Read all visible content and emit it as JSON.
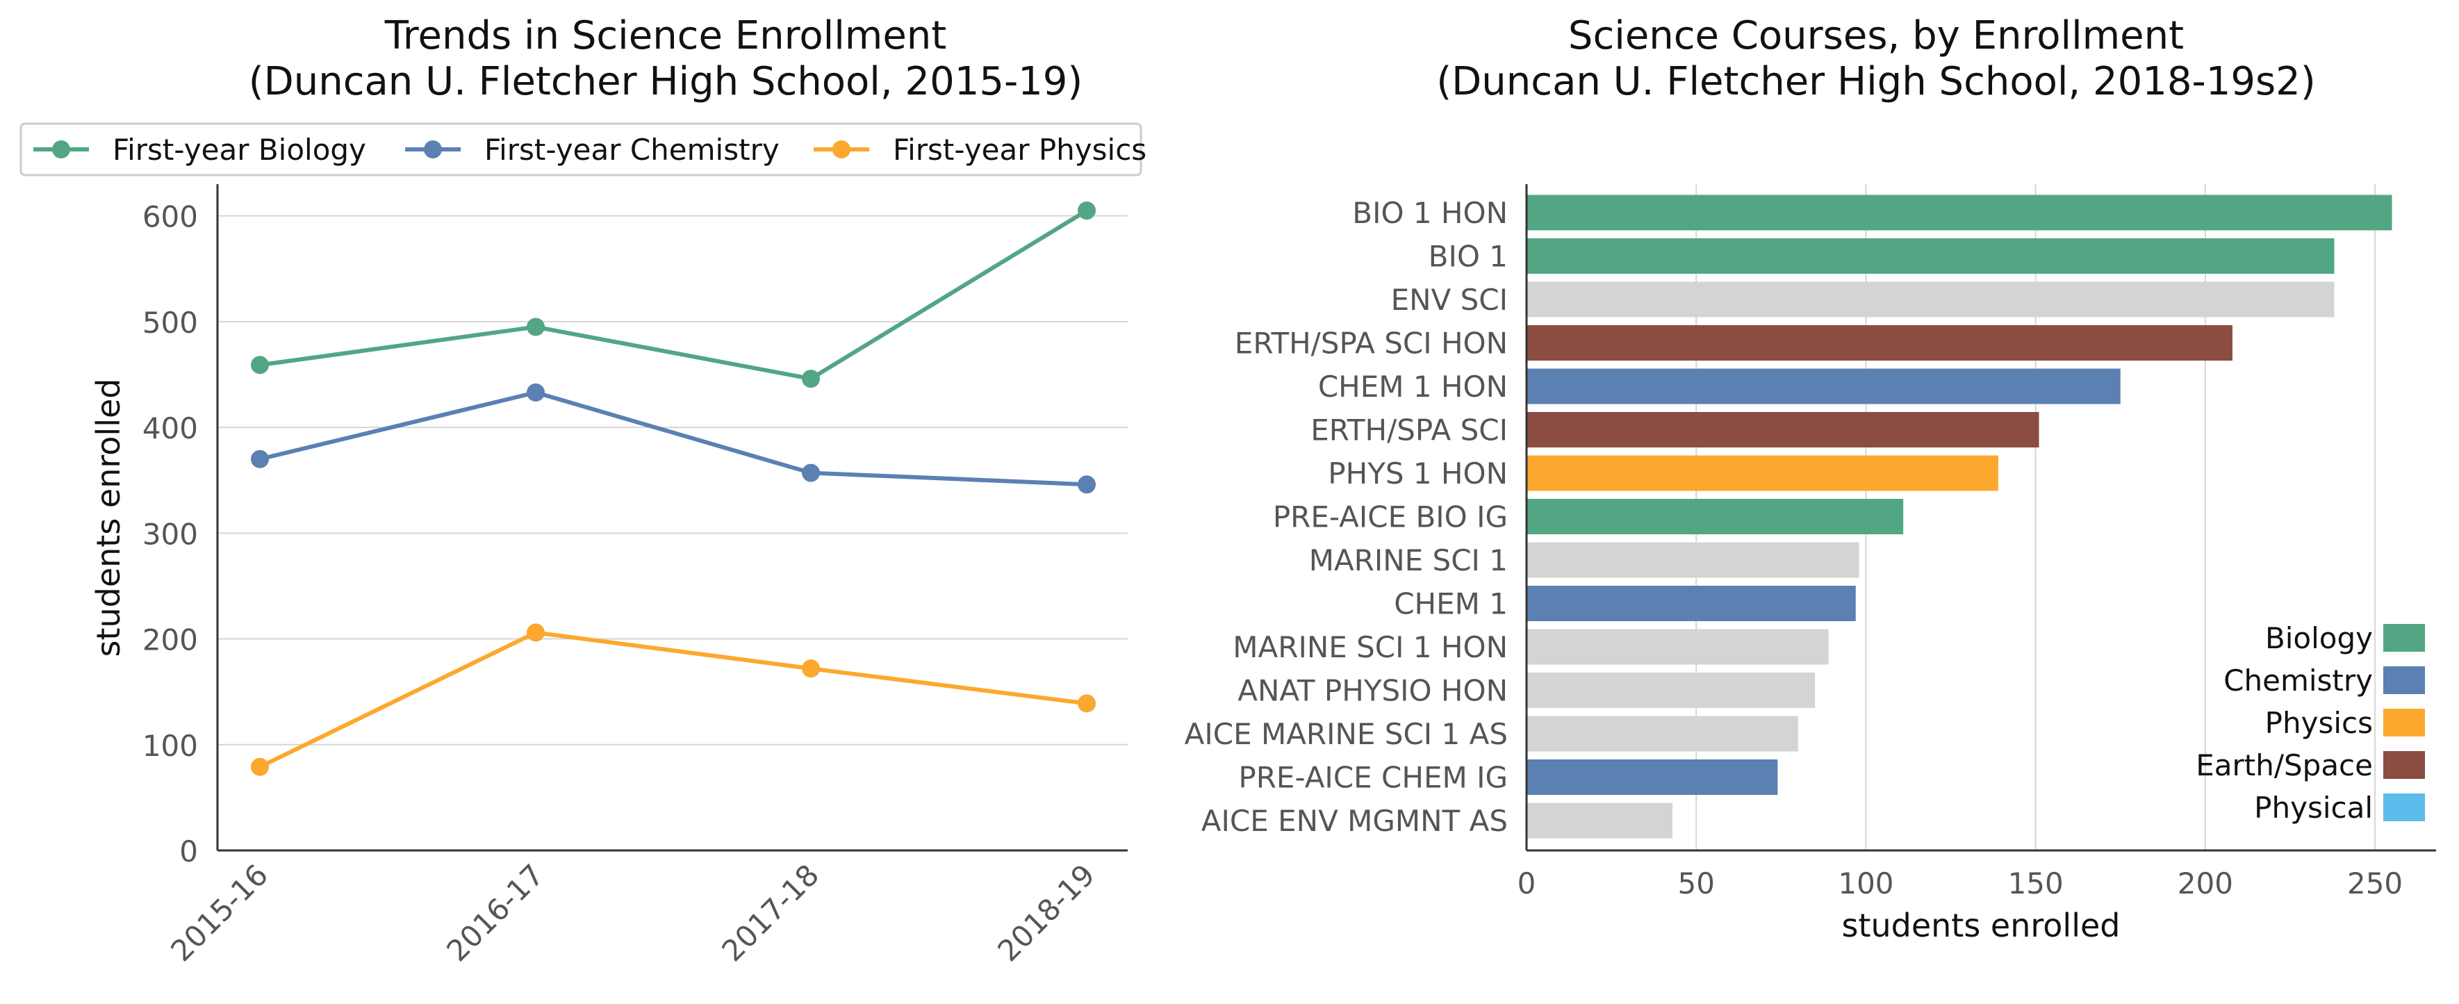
{
  "chart_data": [
    {
      "type": "line",
      "title_lines": [
        "Trends in Science Enrollment",
        "(Duncan U. Fletcher High School, 2015-19)"
      ],
      "xlabel": "",
      "ylabel": "students enrolled",
      "categories": [
        "2015-16",
        "2016-17",
        "2017-18",
        "2018-19"
      ],
      "ylim": [
        0,
        630
      ],
      "yticks": [
        0,
        100,
        200,
        300,
        400,
        500,
        600
      ],
      "grid": "horizontal",
      "legend_position": "top",
      "series": [
        {
          "name": "First-year Biology",
          "color": "#52a683",
          "values": [
            459,
            495,
            446,
            605
          ]
        },
        {
          "name": "First-year Chemistry",
          "color": "#5b80b2",
          "values": [
            370,
            433,
            357,
            346
          ]
        },
        {
          "name": "First-year Physics",
          "color": "#fca82e",
          "values": [
            79,
            206,
            172,
            139
          ]
        }
      ]
    },
    {
      "type": "bar",
      "orientation": "horizontal",
      "title_lines": [
        "Science Courses, by Enrollment",
        "(Duncan U. Fletcher High School, 2018-19s2)"
      ],
      "xlabel": "students enrolled",
      "ylabel": "",
      "xlim": [
        0,
        268
      ],
      "xticks": [
        0,
        50,
        100,
        150,
        200,
        250
      ],
      "grid": "vertical",
      "legend_position": "lower-right",
      "categories": [
        "BIO 1 HON",
        "BIO 1",
        "ENV SCI",
        "ERTH/SPA SCI HON",
        "CHEM 1 HON",
        "ERTH/SPA SCI",
        "PHYS 1 HON",
        "PRE-AICE BIO IG",
        "MARINE SCI 1",
        "CHEM 1",
        "MARINE SCI 1 HON",
        "ANAT PHYSIO HON",
        "AICE MARINE SCI 1 AS",
        "PRE-AICE CHEM IG",
        "AICE ENV MGMNT AS"
      ],
      "values": [
        255,
        238,
        238,
        208,
        175,
        151,
        139,
        111,
        98,
        97,
        89,
        85,
        80,
        74,
        43
      ],
      "groups": [
        "Biology",
        "Biology",
        "Other",
        "Earth/Space",
        "Chemistry",
        "Earth/Space",
        "Physics",
        "Biology",
        "Other",
        "Chemistry",
        "Other",
        "Other",
        "Other",
        "Chemistry",
        "Other"
      ],
      "group_colors": {
        "Biology": "#52a683",
        "Chemistry": "#5b80b2",
        "Physics": "#fca82e",
        "Earth/Space": "#8b4d42",
        "Physical": "#5cbcec",
        "Other": "#d4d4d4"
      },
      "legend": [
        {
          "name": "Biology",
          "color": "#52a683"
        },
        {
          "name": "Chemistry",
          "color": "#5b80b2"
        },
        {
          "name": "Physics",
          "color": "#fca82e"
        },
        {
          "name": "Earth/Space",
          "color": "#8b4d42"
        },
        {
          "name": "Physical",
          "color": "#5cbcec"
        }
      ]
    }
  ]
}
